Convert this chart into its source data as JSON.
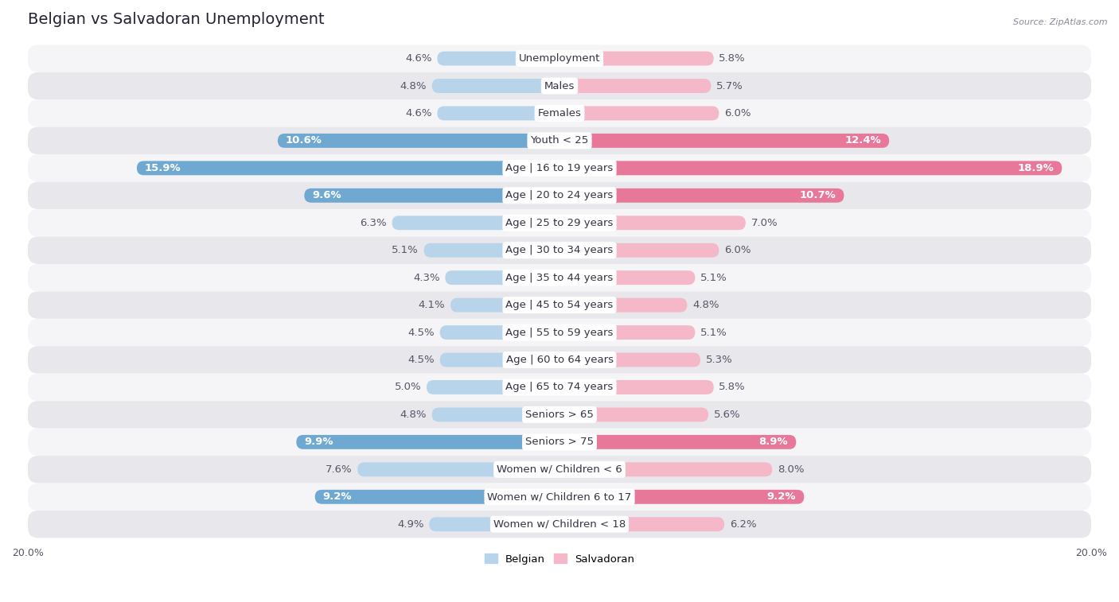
{
  "title": "Belgian vs Salvadoran Unemployment",
  "source": "Source: ZipAtlas.com",
  "categories": [
    "Unemployment",
    "Males",
    "Females",
    "Youth < 25",
    "Age | 16 to 19 years",
    "Age | 20 to 24 years",
    "Age | 25 to 29 years",
    "Age | 30 to 34 years",
    "Age | 35 to 44 years",
    "Age | 45 to 54 years",
    "Age | 55 to 59 years",
    "Age | 60 to 64 years",
    "Age | 65 to 74 years",
    "Seniors > 65",
    "Seniors > 75",
    "Women w/ Children < 6",
    "Women w/ Children 6 to 17",
    "Women w/ Children < 18"
  ],
  "belgian": [
    4.6,
    4.8,
    4.6,
    10.6,
    15.9,
    9.6,
    6.3,
    5.1,
    4.3,
    4.1,
    4.5,
    4.5,
    5.0,
    4.8,
    9.9,
    7.6,
    9.2,
    4.9
  ],
  "salvadoran": [
    5.8,
    5.7,
    6.0,
    12.4,
    18.9,
    10.7,
    7.0,
    6.0,
    5.1,
    4.8,
    5.1,
    5.3,
    5.8,
    5.6,
    8.9,
    8.0,
    9.2,
    6.2
  ],
  "belgian_color_light": "#b8d4ea",
  "belgian_color_dark": "#6fa8d0",
  "salvadoran_color_light": "#f4b8c8",
  "salvadoran_color_dark": "#e8789a",
  "bg_color_odd": "#e8e8ec",
  "bg_color_even": "#f5f5f7",
  "bg_white": "#ffffff",
  "max_val": 20.0,
  "label_fontsize": 9.5,
  "title_fontsize": 14,
  "bar_height": 0.52,
  "highlight_threshold": 8.5
}
